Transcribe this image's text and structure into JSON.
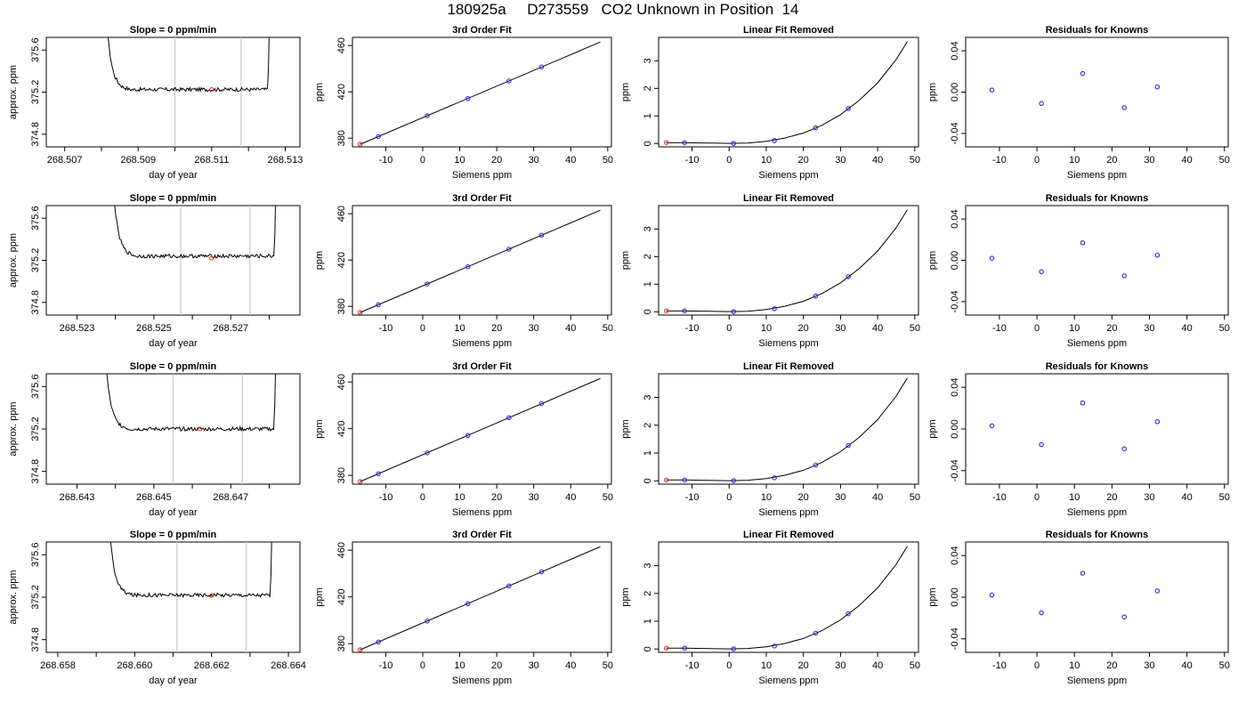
{
  "title": "180925a     D273559   CO2 Unknown in Position  14",
  "chart_data": [
    {
      "type": "line",
      "title": "Slope =  0  ppm/min",
      "xlabel": "day of year",
      "ylabel": "approx. ppm",
      "xlim": [
        268.5065,
        268.5134
      ],
      "ylim": [
        374.68,
        375.72
      ],
      "xticks": [
        "268.507",
        "268.508",
        "268.509",
        "268.510",
        "268.511",
        "268.512",
        "268.513"
      ],
      "xtick_labels": [
        "268.507",
        "",
        "268.509",
        "",
        "268.511",
        "",
        "268.513"
      ],
      "yticks": [
        "374.8",
        "375.2",
        "375.6"
      ],
      "vlines": [
        268.51,
        268.5118
      ],
      "trace": {
        "start": 268.5081,
        "end": 268.5126,
        "level": 375.225,
        "noise": 0.018
      },
      "mean_point": {
        "x": 268.511,
        "y": 375.225
      }
    },
    {
      "type": "line",
      "title": "3rd Order Fit",
      "xlabel": "Siemens ppm",
      "ylabel": "ppm",
      "xlim": [
        -19,
        51
      ],
      "ylim": [
        372.5,
        467
      ],
      "xticks": [
        "-10",
        "0",
        "10",
        "20",
        "30",
        "40",
        "50"
      ],
      "yticks": [
        "380",
        "420",
        "460"
      ],
      "fit": {
        "x0": -17,
        "y0": 374.6,
        "x1": 48,
        "y1": 463
      },
      "points": [
        {
          "x": -12,
          "y": 381.4
        },
        {
          "x": 1.2,
          "y": 399.3
        },
        {
          "x": 12.2,
          "y": 414.2
        },
        {
          "x": 23.3,
          "y": 429.4
        },
        {
          "x": 32.1,
          "y": 441.5
        }
      ],
      "unknown": {
        "x": -16.9,
        "y": 374.8
      }
    },
    {
      "type": "line",
      "title": "Linear Fit Removed",
      "xlabel": "Siemens ppm",
      "ylabel": "ppm",
      "xlim": [
        -19,
        51
      ],
      "ylim": [
        -0.12,
        3.85
      ],
      "xticks": [
        "-10",
        "0",
        "10",
        "20",
        "30",
        "40",
        "50"
      ],
      "yticks": [
        "0",
        "1",
        "2",
        "3"
      ],
      "curve": [
        [
          -17,
          0.03
        ],
        [
          -12,
          0.03
        ],
        [
          -5,
          0.015
        ],
        [
          0,
          0.005
        ],
        [
          5,
          0.02
        ],
        [
          10,
          0.08
        ],
        [
          15,
          0.2
        ],
        [
          20,
          0.38
        ],
        [
          25,
          0.66
        ],
        [
          30,
          1.05
        ],
        [
          35,
          1.56
        ],
        [
          40,
          2.2
        ],
        [
          45,
          3.05
        ],
        [
          48,
          3.7
        ]
      ],
      "points": [
        {
          "x": -12,
          "y": 0.03
        },
        {
          "x": 1.2,
          "y": 0.005
        },
        {
          "x": 12.2,
          "y": 0.11
        },
        {
          "x": 23.3,
          "y": 0.57
        },
        {
          "x": 32.1,
          "y": 1.27
        }
      ],
      "unknown": {
        "x": -16.9,
        "y": 0.03
      }
    },
    {
      "type": "scatter",
      "title": "Residuals for Knowns",
      "xlabel": "Siemens ppm",
      "ylabel": "ppm",
      "xlim": [
        -19,
        51
      ],
      "ylim": [
        -0.053,
        0.053
      ],
      "xticks": [
        "-10",
        "0",
        "10",
        "20",
        "30",
        "40",
        "50"
      ],
      "yticks": [
        "-0.04",
        "0.00",
        "0.04"
      ],
      "points": [
        {
          "x": -12,
          "y": 0.002
        },
        {
          "x": 1.2,
          "y": -0.011
        },
        {
          "x": 12.2,
          "y": 0.018
        },
        {
          "x": 23.3,
          "y": -0.015
        },
        {
          "x": 32.1,
          "y": 0.005
        }
      ]
    },
    {
      "type": "line",
      "title": "Slope =  0  ppm/min",
      "xlabel": "day of year",
      "ylabel": "approx. ppm",
      "xlim": [
        268.5222,
        268.5288
      ],
      "ylim": [
        374.68,
        375.72
      ],
      "xticks": [
        "268.523",
        "268.524",
        "268.525",
        "268.526",
        "268.527",
        "268.528"
      ],
      "xtick_labels": [
        "268.523",
        "",
        "268.525",
        "",
        "268.527",
        ""
      ],
      "yticks": [
        "374.8",
        "375.2",
        "375.6"
      ],
      "vlines": [
        268.5257,
        268.5275
      ],
      "trace": {
        "start": 268.5239,
        "end": 268.5282,
        "level": 375.24,
        "noise": 0.018
      },
      "mean_point": {
        "x": 268.5265,
        "y": 375.22
      }
    },
    {
      "type": "line",
      "title": "3rd Order Fit",
      "xlabel": "Siemens ppm",
      "ylabel": "ppm",
      "xlim": [
        -19,
        51
      ],
      "ylim": [
        372.5,
        467
      ],
      "xticks": [
        "-10",
        "0",
        "10",
        "20",
        "30",
        "40",
        "50"
      ],
      "yticks": [
        "380",
        "420",
        "460"
      ],
      "fit": {
        "x0": -17,
        "y0": 374.6,
        "x1": 48,
        "y1": 463
      },
      "points": [
        {
          "x": -12,
          "y": 381.4
        },
        {
          "x": 1.2,
          "y": 399.3
        },
        {
          "x": 12.2,
          "y": 414.2
        },
        {
          "x": 23.3,
          "y": 429.4
        },
        {
          "x": 32.1,
          "y": 441.5
        }
      ],
      "unknown": {
        "x": -16.9,
        "y": 374.8
      }
    },
    {
      "type": "line",
      "title": "Linear Fit Removed",
      "xlabel": "Siemens ppm",
      "ylabel": "ppm",
      "xlim": [
        -19,
        51
      ],
      "ylim": [
        -0.12,
        3.85
      ],
      "xticks": [
        "-10",
        "0",
        "10",
        "20",
        "30",
        "40",
        "50"
      ],
      "yticks": [
        "0",
        "1",
        "2",
        "3"
      ],
      "curve": [
        [
          -17,
          0.03
        ],
        [
          -12,
          0.03
        ],
        [
          -5,
          0.015
        ],
        [
          0,
          0.005
        ],
        [
          5,
          0.02
        ],
        [
          10,
          0.08
        ],
        [
          15,
          0.2
        ],
        [
          20,
          0.38
        ],
        [
          25,
          0.66
        ],
        [
          30,
          1.05
        ],
        [
          35,
          1.56
        ],
        [
          40,
          2.2
        ],
        [
          45,
          3.05
        ],
        [
          48,
          3.7
        ]
      ],
      "points": [
        {
          "x": -12,
          "y": 0.03
        },
        {
          "x": 1.2,
          "y": 0.005
        },
        {
          "x": 12.2,
          "y": 0.11
        },
        {
          "x": 23.3,
          "y": 0.57
        },
        {
          "x": 32.1,
          "y": 1.27
        }
      ],
      "unknown": {
        "x": -16.9,
        "y": 0.03
      }
    },
    {
      "type": "scatter",
      "title": "Residuals for Knowns",
      "xlabel": "Siemens ppm",
      "ylabel": "ppm",
      "xlim": [
        -19,
        51
      ],
      "ylim": [
        -0.053,
        0.053
      ],
      "xticks": [
        "-10",
        "0",
        "10",
        "20",
        "30",
        "40",
        "50"
      ],
      "yticks": [
        "-0.04",
        "0.00",
        "0.04"
      ],
      "points": [
        {
          "x": -12,
          "y": 0.002
        },
        {
          "x": 1.2,
          "y": -0.011
        },
        {
          "x": 12.2,
          "y": 0.017
        },
        {
          "x": 23.3,
          "y": -0.015
        },
        {
          "x": 32.1,
          "y": 0.005
        }
      ]
    },
    {
      "type": "line",
      "title": "Slope =  0  ppm/min",
      "xlabel": "day of year",
      "ylabel": "approx. ppm",
      "xlim": [
        268.6422,
        268.6488
      ],
      "ylim": [
        374.68,
        375.72
      ],
      "xticks": [
        "268.643",
        "268.644",
        "268.645",
        "268.646",
        "268.647",
        "268.648"
      ],
      "xtick_labels": [
        "268.643",
        "",
        "268.645",
        "",
        "268.647",
        ""
      ],
      "yticks": [
        "374.8",
        "375.2",
        "375.6"
      ],
      "vlines": [
        268.6455,
        268.6473
      ],
      "trace": {
        "start": 268.6437,
        "end": 268.6482,
        "level": 375.2,
        "noise": 0.018
      },
      "mean_point": {
        "x": 268.6462,
        "y": 375.2
      }
    },
    {
      "type": "line",
      "title": "3rd Order Fit",
      "xlabel": "Siemens ppm",
      "ylabel": "ppm",
      "xlim": [
        -19,
        51
      ],
      "ylim": [
        372.5,
        467
      ],
      "xticks": [
        "-10",
        "0",
        "10",
        "20",
        "30",
        "40",
        "50"
      ],
      "yticks": [
        "380",
        "420",
        "460"
      ],
      "fit": {
        "x0": -17,
        "y0": 374.6,
        "x1": 48,
        "y1": 463
      },
      "points": [
        {
          "x": -12,
          "y": 381.4
        },
        {
          "x": 1.2,
          "y": 399.3
        },
        {
          "x": 12.2,
          "y": 414.2
        },
        {
          "x": 23.3,
          "y": 429.4
        },
        {
          "x": 32.1,
          "y": 441.5
        }
      ],
      "unknown": {
        "x": -16.9,
        "y": 374.8
      }
    },
    {
      "type": "line",
      "title": "Linear Fit Removed",
      "xlabel": "Siemens ppm",
      "ylabel": "ppm",
      "xlim": [
        -19,
        51
      ],
      "ylim": [
        -0.12,
        3.85
      ],
      "xticks": [
        "-10",
        "0",
        "10",
        "20",
        "30",
        "40",
        "50"
      ],
      "yticks": [
        "0",
        "1",
        "2",
        "3"
      ],
      "curve": [
        [
          -17,
          0.03
        ],
        [
          -12,
          0.03
        ],
        [
          -5,
          0.015
        ],
        [
          0,
          0.005
        ],
        [
          5,
          0.02
        ],
        [
          10,
          0.08
        ],
        [
          15,
          0.2
        ],
        [
          20,
          0.38
        ],
        [
          25,
          0.66
        ],
        [
          30,
          1.05
        ],
        [
          35,
          1.56
        ],
        [
          40,
          2.2
        ],
        [
          45,
          3.05
        ],
        [
          48,
          3.7
        ]
      ],
      "points": [
        {
          "x": -12,
          "y": 0.03
        },
        {
          "x": 1.2,
          "y": 0.005
        },
        {
          "x": 12.2,
          "y": 0.11
        },
        {
          "x": 23.3,
          "y": 0.57
        },
        {
          "x": 32.1,
          "y": 1.27
        }
      ],
      "unknown": {
        "x": -16.9,
        "y": 0.03
      }
    },
    {
      "type": "scatter",
      "title": "Residuals for Knowns",
      "xlabel": "Siemens ppm",
      "ylabel": "ppm",
      "xlim": [
        -19,
        51
      ],
      "ylim": [
        -0.053,
        0.053
      ],
      "xticks": [
        "-10",
        "0",
        "10",
        "20",
        "30",
        "40",
        "50"
      ],
      "yticks": [
        "-0.04",
        "0.00",
        "0.04"
      ],
      "points": [
        {
          "x": -12,
          "y": 0.003
        },
        {
          "x": 1.2,
          "y": -0.015
        },
        {
          "x": 12.2,
          "y": 0.025
        },
        {
          "x": 23.3,
          "y": -0.019
        },
        {
          "x": 32.1,
          "y": 0.007
        }
      ]
    },
    {
      "type": "line",
      "title": "Slope =  0  ppm/min",
      "xlabel": "day of year",
      "ylabel": "approx. ppm",
      "xlim": [
        268.6577,
        268.6643
      ],
      "ylim": [
        374.68,
        375.72
      ],
      "xticks": [
        "268.658",
        "268.659",
        "268.660",
        "268.661",
        "268.662",
        "268.663",
        "268.664"
      ],
      "xtick_labels": [
        "268.658",
        "",
        "268.660",
        "",
        "268.662",
        "",
        "268.664"
      ],
      "yticks": [
        "374.8",
        "375.2",
        "375.6"
      ],
      "vlines": [
        268.6611,
        268.6629
      ],
      "trace": {
        "start": 268.6593,
        "end": 268.6636,
        "level": 375.22,
        "noise": 0.018
      },
      "mean_point": {
        "x": 268.662,
        "y": 375.215
      }
    },
    {
      "type": "line",
      "title": "3rd Order Fit",
      "xlabel": "Siemens ppm",
      "ylabel": "ppm",
      "xlim": [
        -19,
        51
      ],
      "ylim": [
        372.5,
        467
      ],
      "xticks": [
        "-10",
        "0",
        "10",
        "20",
        "30",
        "40",
        "50"
      ],
      "yticks": [
        "380",
        "420",
        "460"
      ],
      "fit": {
        "x0": -17,
        "y0": 374.6,
        "x1": 48,
        "y1": 463
      },
      "points": [
        {
          "x": -12,
          "y": 381.4
        },
        {
          "x": 1.2,
          "y": 399.3
        },
        {
          "x": 12.2,
          "y": 414.2
        },
        {
          "x": 23.3,
          "y": 429.4
        },
        {
          "x": 32.1,
          "y": 441.5
        }
      ],
      "unknown": {
        "x": -16.9,
        "y": 374.8
      }
    },
    {
      "type": "line",
      "title": "Linear Fit Removed",
      "xlabel": "Siemens ppm",
      "ylabel": "ppm",
      "xlim": [
        -19,
        51
      ],
      "ylim": [
        -0.12,
        3.85
      ],
      "xticks": [
        "-10",
        "0",
        "10",
        "20",
        "30",
        "40",
        "50"
      ],
      "yticks": [
        "0",
        "1",
        "2",
        "3"
      ],
      "curve": [
        [
          -17,
          0.03
        ],
        [
          -12,
          0.03
        ],
        [
          -5,
          0.015
        ],
        [
          0,
          0.005
        ],
        [
          5,
          0.02
        ],
        [
          10,
          0.08
        ],
        [
          15,
          0.2
        ],
        [
          20,
          0.38
        ],
        [
          25,
          0.66
        ],
        [
          30,
          1.05
        ],
        [
          35,
          1.56
        ],
        [
          40,
          2.2
        ],
        [
          45,
          3.05
        ],
        [
          48,
          3.7
        ]
      ],
      "points": [
        {
          "x": -12,
          "y": 0.03
        },
        {
          "x": 1.2,
          "y": 0.005
        },
        {
          "x": 12.2,
          "y": 0.11
        },
        {
          "x": 23.3,
          "y": 0.57
        },
        {
          "x": 32.1,
          "y": 1.27
        }
      ],
      "unknown": {
        "x": -16.9,
        "y": 0.03
      }
    },
    {
      "type": "scatter",
      "title": "Residuals for Knowns",
      "xlabel": "Siemens ppm",
      "ylabel": "ppm",
      "xlim": [
        -19,
        51
      ],
      "ylim": [
        -0.053,
        0.053
      ],
      "xticks": [
        "-10",
        "0",
        "10",
        "20",
        "30",
        "40",
        "50"
      ],
      "yticks": [
        "-0.04",
        "0.00",
        "0.04"
      ],
      "points": [
        {
          "x": -12,
          "y": 0.002
        },
        {
          "x": 1.2,
          "y": -0.015
        },
        {
          "x": 12.2,
          "y": 0.023
        },
        {
          "x": 23.3,
          "y": -0.019
        },
        {
          "x": 32.1,
          "y": 0.006
        }
      ]
    }
  ],
  "colors": {
    "axis": "#000000",
    "known_point": "#3b1fe0",
    "unknown_point": "#e0301e",
    "guide_line": "#c8c8c8"
  }
}
